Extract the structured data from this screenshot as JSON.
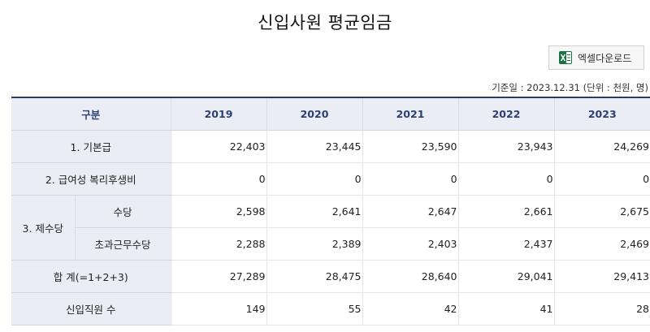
{
  "title": "신입사원 평균임금",
  "excel_button": {
    "label": "엑셀다운로드",
    "icon": "excel-icon"
  },
  "basis_note": "기준일 : 2023.12.31 (단위 : 천원, 명)",
  "table": {
    "header": {
      "category": "구분",
      "years": [
        "2019",
        "2020",
        "2021",
        "2022",
        "2023"
      ]
    },
    "rows": {
      "base_salary": {
        "label": "1. 기본급",
        "values": [
          "22,403",
          "23,445",
          "23,590",
          "23,943",
          "24,269"
        ]
      },
      "welfare": {
        "label": "2. 급여성 복리후생비",
        "values": [
          "0",
          "0",
          "0",
          "0",
          "0"
        ]
      },
      "allowances": {
        "label": "3. 제수당",
        "allowance": {
          "label": "수당",
          "values": [
            "2,598",
            "2,641",
            "2,647",
            "2,661",
            "2,675"
          ]
        },
        "overtime": {
          "label": "초과근무수당",
          "values": [
            "2,288",
            "2,389",
            "2,403",
            "2,437",
            "2,469"
          ]
        }
      },
      "total": {
        "label": "합 계(=1+2+3)",
        "values": [
          "27,289",
          "28,475",
          "28,640",
          "29,041",
          "29,413"
        ]
      },
      "new_hires": {
        "label": "신입직원 수",
        "values": [
          "149",
          "55",
          "42",
          "41",
          "28"
        ]
      }
    }
  },
  "colors": {
    "header_bg": "#eaeef4",
    "header_text": "#2b3f73",
    "top_border": "#2b3a67",
    "excel_green": "#1d7044"
  }
}
